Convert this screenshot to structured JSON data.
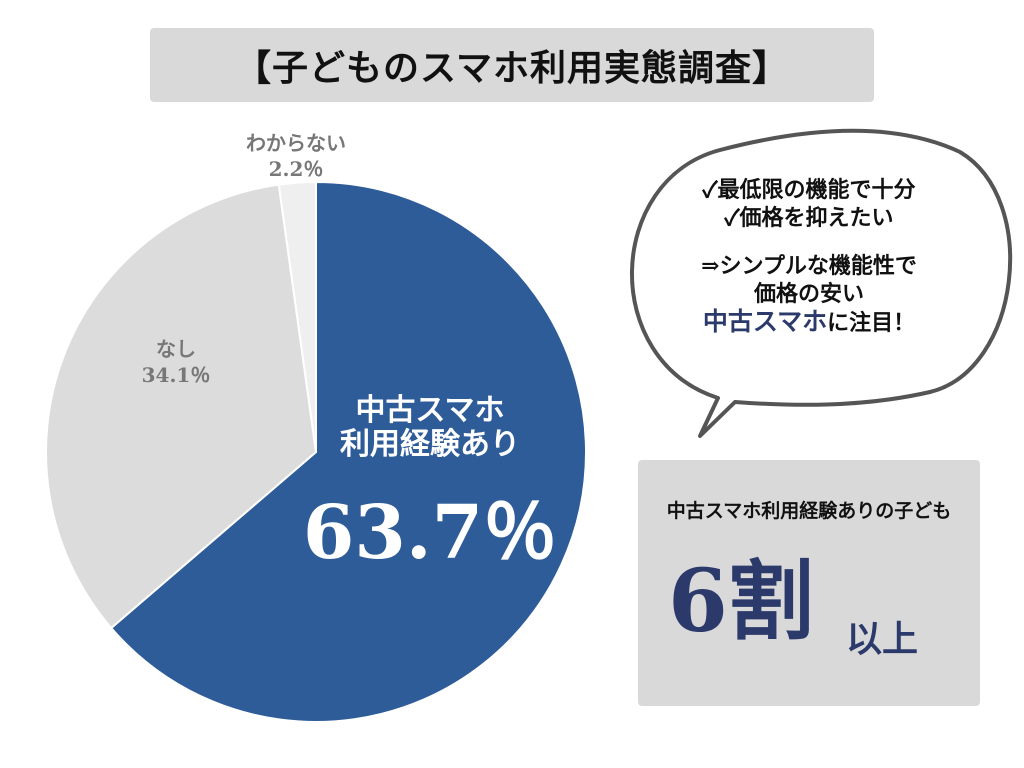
{
  "title": "【子どものスマホ利用実態調査】",
  "chart_data": {
    "type": "pie",
    "slices": [
      {
        "label_lines": [
          "中古スマホ",
          "利用経験あり"
        ],
        "value": 63.7,
        "value_label": "63.7％",
        "color": "#2e5c99"
      },
      {
        "label_lines": [
          "なし"
        ],
        "value": 34.1,
        "value_label": "34.1％",
        "color": "#dcdcdc"
      },
      {
        "label_lines": [
          "わからない"
        ],
        "value": 2.2,
        "value_label": "2.2％",
        "color": "#efefef"
      }
    ]
  },
  "bubble": {
    "line1": "✓最低限の機能で十分",
    "line2": "✓価格を抑えたい",
    "line3": "⇒シンプルな機能性で",
    "line4": "価格の安い",
    "line5_highlight": "中古スマホ",
    "line5_rest": "に注目！"
  },
  "summary": {
    "subtitle": "中古スマホ利用経験ありの子ども",
    "big": "6割",
    "small": "以上"
  },
  "colors": {
    "accent": "#2e5c99",
    "navy_text": "#2b3a6b",
    "panel_gray": "#d9d9d9"
  }
}
